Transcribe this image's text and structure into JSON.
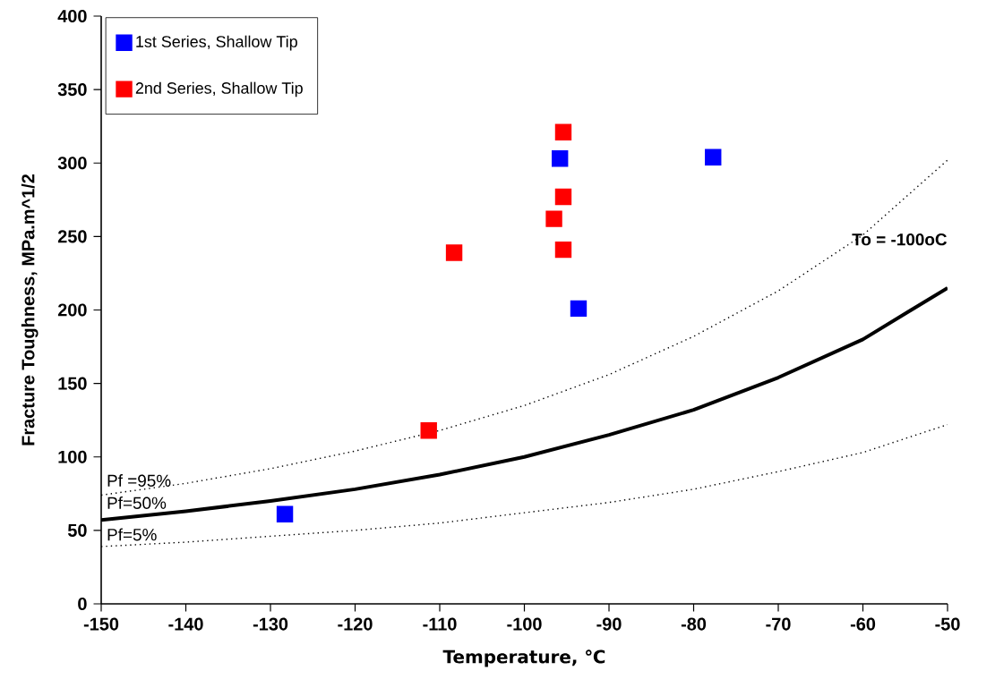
{
  "chart_data": {
    "type": "scatter",
    "xlabel": "Temperature, ℃",
    "ylabel": "Fracture Toughness, MPa.m^1/2",
    "xlim": [
      -150,
      -50
    ],
    "xticks": [
      -150,
      -140,
      -130,
      -120,
      -110,
      -100,
      -90,
      -80,
      -70,
      -60,
      -50
    ],
    "ylim": [
      0,
      400
    ],
    "yticks": [
      0,
      50,
      100,
      150,
      200,
      250,
      300,
      350,
      400
    ],
    "grid": false,
    "legend": "top left",
    "series": [
      {
        "name": "1st Series, Shallow Tip",
        "marker": "square",
        "color": "#0000ff",
        "x": [
          -128.3,
          -95.8,
          -93.6,
          -77.7
        ],
        "values": [
          61,
          303,
          201,
          304
        ]
      },
      {
        "name": "2nd Series, Shallow Tip",
        "marker": "square",
        "color": "#ff0000",
        "x": [
          -95.4,
          -95.4,
          -95.4,
          -96.5,
          -108.3,
          -111.3
        ],
        "values": [
          321,
          277,
          241,
          262,
          239,
          118
        ]
      },
      {
        "type": "line",
        "line_style": "solid",
        "color": "#000000",
        "x": [
          -150,
          -140,
          -130,
          -120,
          -110,
          -100,
          -90,
          -80,
          -70,
          -60,
          -50
        ],
        "values": [
          57,
          63,
          70,
          78,
          88,
          100,
          115,
          132,
          154,
          180,
          215
        ]
      },
      {
        "type": "line",
        "line_style": "dotted",
        "color": "#000000",
        "x": [
          -150,
          -140,
          -130,
          -120,
          -110,
          -100,
          -90,
          -80,
          -70,
          -60,
          -50
        ],
        "values": [
          74,
          82,
          92,
          104,
          118,
          135,
          156,
          182,
          213,
          251,
          302
        ]
      },
      {
        "type": "line",
        "line_style": "dotted",
        "color": "#000000",
        "x": [
          -150,
          -140,
          -130,
          -120,
          -110,
          -100,
          -90,
          -80,
          -70,
          -60,
          -50
        ],
        "values": [
          39,
          42,
          46,
          50,
          55,
          62,
          69,
          78,
          90,
          103,
          122
        ]
      }
    ],
    "annotations": [
      "Pf =95%",
      "Pf=50%",
      "Pf=5%",
      "**To = -100oC**"
    ]
  }
}
